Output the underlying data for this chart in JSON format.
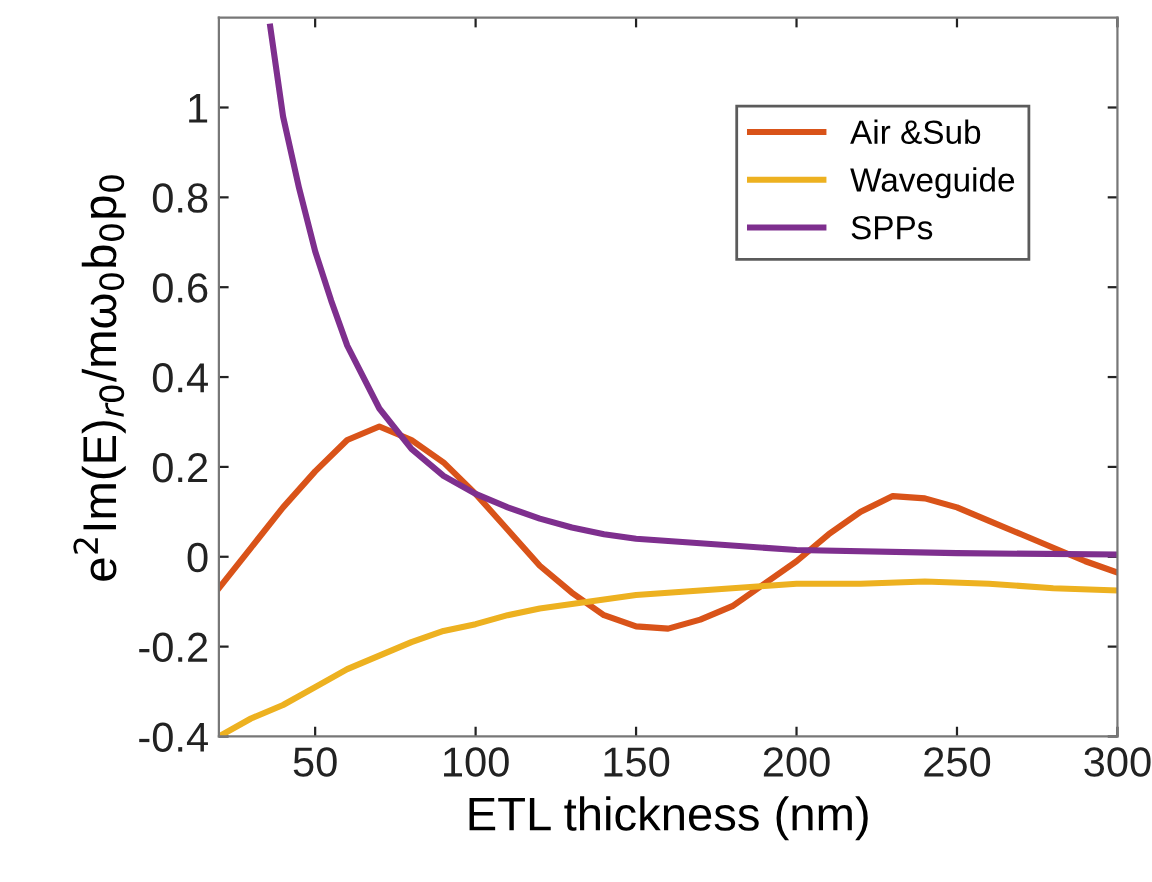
{
  "chart_data": {
    "type": "line",
    "xlabel": "ETL thickness (nm)",
    "ylabel": "e$^{2}$Im(E)$_{r0}$/mω$_{0}$b$_{0}$p$_{0}$",
    "xlim": [
      20,
      300
    ],
    "ylim": [
      -0.4,
      1.2
    ],
    "xticks": [
      50,
      100,
      150,
      200,
      250,
      300
    ],
    "yticks": [
      -0.4,
      -0.2,
      0,
      0.2,
      0.4,
      0.6,
      0.8,
      1
    ],
    "grid": false,
    "legend": "top right",
    "marker": "none",
    "line_style": "solid",
    "series": [
      {
        "name": "Air &Sub",
        "color": "#d95319",
        "x": [
          20,
          30,
          40,
          50,
          60,
          70,
          80,
          90,
          100,
          110,
          120,
          130,
          140,
          150,
          160,
          170,
          180,
          190,
          200,
          210,
          220,
          230,
          240,
          250,
          260,
          270,
          280,
          290,
          300
        ],
        "values": [
          -0.07,
          0.02,
          0.11,
          0.19,
          0.26,
          0.29,
          0.26,
          0.21,
          0.14,
          0.06,
          -0.02,
          -0.08,
          -0.13,
          -0.155,
          -0.16,
          -0.14,
          -0.11,
          -0.06,
          -0.01,
          0.05,
          0.1,
          0.135,
          0.13,
          0.11,
          0.08,
          0.05,
          0.02,
          -0.01,
          -0.035
        ]
      },
      {
        "name": "Waveguide",
        "color": "#edb120",
        "x": [
          20,
          30,
          40,
          50,
          60,
          70,
          80,
          90,
          100,
          110,
          120,
          130,
          140,
          150,
          160,
          170,
          180,
          190,
          200,
          220,
          240,
          260,
          280,
          300
        ],
        "values": [
          -0.4,
          -0.36,
          -0.33,
          -0.29,
          -0.25,
          -0.22,
          -0.19,
          -0.165,
          -0.15,
          -0.13,
          -0.115,
          -0.105,
          -0.095,
          -0.085,
          -0.08,
          -0.075,
          -0.07,
          -0.065,
          -0.06,
          -0.06,
          -0.055,
          -0.06,
          -0.07,
          -0.075
        ]
      },
      {
        "name": "SPPs",
        "color": "#7e2f8e",
        "x": [
          36,
          40,
          45,
          50,
          55,
          60,
          70,
          80,
          90,
          100,
          110,
          120,
          130,
          140,
          150,
          170,
          200,
          250,
          300
        ],
        "values": [
          1.18,
          0.98,
          0.82,
          0.68,
          0.57,
          0.47,
          0.33,
          0.24,
          0.18,
          0.14,
          0.11,
          0.085,
          0.065,
          0.05,
          0.04,
          0.03,
          0.015,
          0.008,
          0.005
        ]
      }
    ]
  }
}
